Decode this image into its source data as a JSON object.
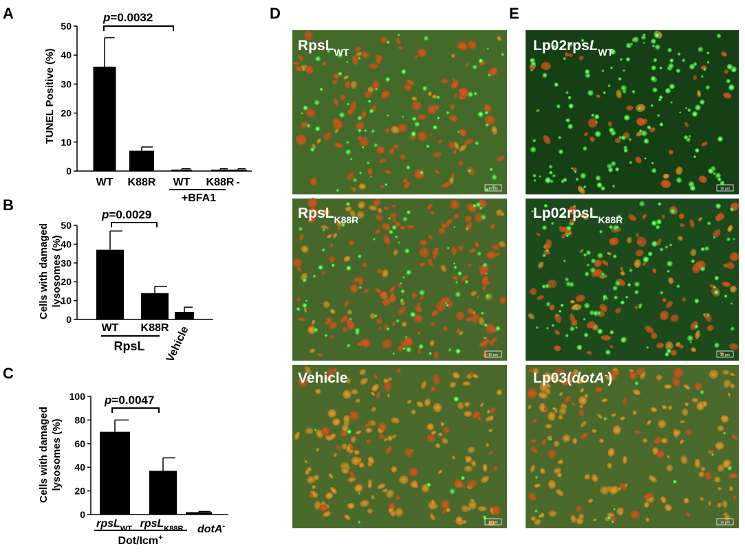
{
  "panels": {
    "A": {
      "letter": "A",
      "ylabel": "TUNEL Positive (%)",
      "significance": {
        "p": "p",
        "value": "=0.0032"
      },
      "group_label": "+BFA1"
    },
    "B": {
      "letter": "B",
      "ylabel_line1": "Cells with damaged",
      "ylabel_line2": "lysosomes (%)",
      "significance": {
        "p": "p",
        "value": "=0.0029"
      },
      "group_label": "RpsL"
    },
    "C": {
      "letter": "C",
      "ylabel_line1": "Cells with damaged",
      "ylabel_line2": "lysosomes (%)",
      "significance": {
        "p": "p",
        "value": "=0.0047"
      },
      "group_label": "Dot/Icm",
      "group_label_sup": "+",
      "cat_rpsl_base": "rpsL",
      "cat_wt_sub": "WT",
      "cat_k88r_sub": "K88R",
      "cat_dota_base": "dotA",
      "cat_dota_sup": "-"
    },
    "D": {
      "letter": "D",
      "images": [
        {
          "base": "RpsL",
          "sub": "WT",
          "scale": "10 μm"
        },
        {
          "base": "RpsL",
          "sub": "K88R",
          "scale": "10 μm"
        },
        {
          "base": "Vehicle",
          "sub": "",
          "scale": "10 μm"
        }
      ]
    },
    "E": {
      "letter": "E",
      "images": [
        {
          "base": "Lp02rps",
          "ital": "L",
          "sub": "WT",
          "scale": "10 μm"
        },
        {
          "base": "Lp02rpsL",
          "ital": "",
          "sub": "K88R",
          "scale": "10 μm"
        },
        {
          "base": "Lp03(",
          "ital": "dotA",
          "sup": "-",
          "tail": ")",
          "scale": "10 μm"
        }
      ]
    }
  },
  "chart_data": [
    {
      "type": "bar",
      "panel": "A",
      "categories": [
        "WT",
        "K88R",
        "WT",
        "K88R",
        "-"
      ],
      "values": [
        36,
        7,
        0.5,
        0.5,
        0.5
      ],
      "errors": [
        10,
        1.3,
        0.3,
        0.3,
        0.3
      ],
      "ylim": [
        0,
        50
      ],
      "yticks": [
        0,
        10,
        20,
        30,
        40,
        50
      ],
      "ylabel": "TUNEL Positive (%)"
    },
    {
      "type": "bar",
      "panel": "B",
      "categories": [
        "WT",
        "K88R",
        "Vehicle"
      ],
      "values": [
        37,
        14,
        4
      ],
      "errors": [
        10,
        3.5,
        2.5
      ],
      "ylim": [
        0,
        50
      ],
      "yticks": [
        0,
        10,
        20,
        30,
        40,
        50
      ],
      "ylabel": "Cells with damaged lysosomes (%)"
    },
    {
      "type": "bar",
      "panel": "C",
      "categories": [
        "rpsLWT",
        "rpsLK88R",
        "dotA-"
      ],
      "values": [
        70,
        37,
        2
      ],
      "errors": [
        10,
        11,
        0.6
      ],
      "ylim": [
        0,
        100
      ],
      "yticks": [
        0,
        20,
        40,
        60,
        80,
        100
      ],
      "ylabel": "Cells with damaged lysosomes (%)"
    }
  ]
}
